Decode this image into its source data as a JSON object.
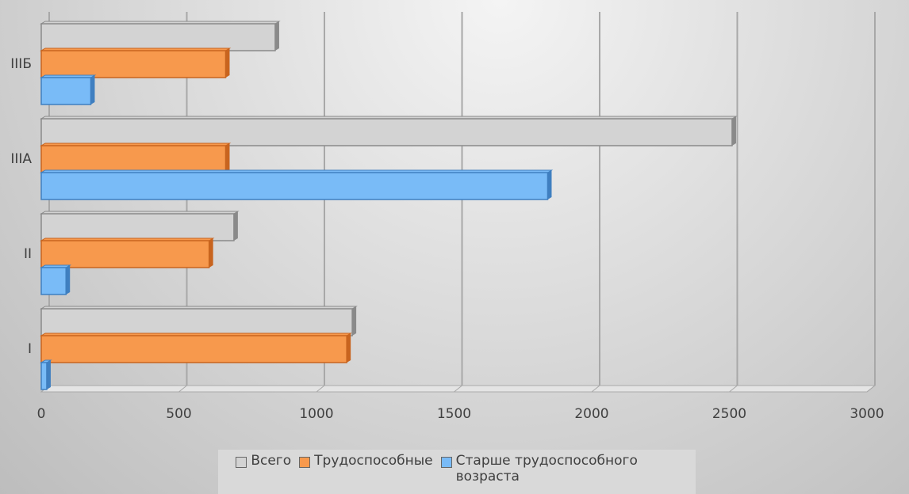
{
  "chart_data": {
    "type": "bar",
    "orientation": "horizontal",
    "three_d": true,
    "categories": [
      "I",
      "II",
      "IIIA",
      "IIIБ"
    ],
    "series": [
      {
        "name": "Всего",
        "color": "#d3d3d3",
        "values": [
          1130,
          700,
          2510,
          850
        ]
      },
      {
        "name": "Трудоспособные",
        "color": "#f7994d",
        "values": [
          1110,
          610,
          670,
          670
        ]
      },
      {
        "name": "Старше трудоспособного возраста",
        "color": "#79bbf7",
        "values": [
          20,
          90,
          1840,
          180
        ]
      }
    ],
    "xlim": [
      0,
      3000
    ],
    "xticks": [
      0,
      500,
      1000,
      1500,
      2000,
      2500,
      3000
    ],
    "grid": true,
    "legend": "bottom"
  }
}
